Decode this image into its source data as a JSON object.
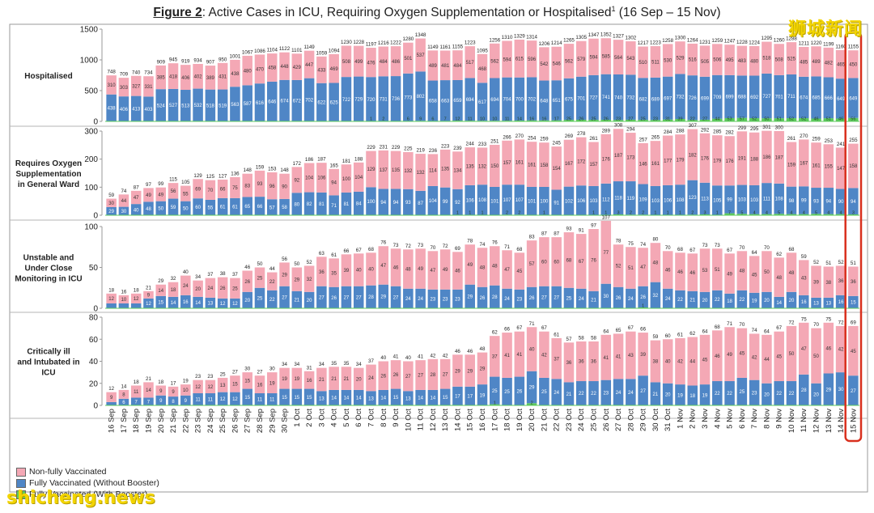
{
  "figure": {
    "label": "Figure 2",
    "title_rest": ": Active Cases in ICU, Requiring Oxygen Supplementation or Hospitalised",
    "superscript": "1",
    "date_range": " (16 Sep – 15 Nov)"
  },
  "watermarks": {
    "top_right": "狮城新闻",
    "bottom_left": "shicheng.news"
  },
  "legend": [
    {
      "label": "Non-fully Vaccinated",
      "color": "#f4a8b5"
    },
    {
      "label": "Fully Vaccinated (Without Booster)",
      "color": "#4f86c6"
    },
    {
      "label": "Fully Vaccinated (With Booster)",
      "color": "#5cc95c"
    }
  ],
  "chart_data": {
    "type": "bar",
    "stacked": true,
    "categories": [
      "16 Sep",
      "17 Sep",
      "18 Sep",
      "19 Sep",
      "20 Sep",
      "21 Sep",
      "22 Sep",
      "23 Sep",
      "24 Sep",
      "25 Sep",
      "26 Sep",
      "27 Sep",
      "28 Sep",
      "29 Sep",
      "30 Sep",
      "1 Oct",
      "2 Oct",
      "3 Oct",
      "4 Oct",
      "5 Oct",
      "6 Oct",
      "7 Oct",
      "8 Oct",
      "9 Oct",
      "10 Oct",
      "11 Oct",
      "12 Oct",
      "13 Oct",
      "14 Oct",
      "15 Oct",
      "16 Oct",
      "17 Oct",
      "18 Oct",
      "19 Oct",
      "20 Oct",
      "21 Oct",
      "22 Oct",
      "23 Oct",
      "24 Oct",
      "25 Oct",
      "26 Oct",
      "27 Oct",
      "28 Oct",
      "29 Oct",
      "30 Oct",
      "31 Oct",
      "1 Nov",
      "2 Nov",
      "3 Nov",
      "4 Nov",
      "5 Nov",
      "6 Nov",
      "7 Nov",
      "8 Nov",
      "9 Nov",
      "10 Nov",
      "11 Nov",
      "12 Nov",
      "13 Nov",
      "14 Nov",
      "15 Nov"
    ],
    "highlight_category": "15 Nov",
    "colors": {
      "non_fully": "#f4a8b5",
      "fully_no_booster": "#4f86c6",
      "booster": "#5cc95c",
      "highlight": "#d9301e"
    },
    "panels": [
      {
        "label": "Hospitalised",
        "ylim": [
          0,
          1500
        ],
        "yticks": [
          0,
          500,
          1000,
          1500
        ],
        "totals": [
          748,
          709,
          740,
          734,
          909,
          945,
          919,
          934,
          907,
          950,
          1001,
          1067,
          1086,
          1104,
          1122,
          1101,
          1149,
          1059,
          1094,
          1230,
          1228,
          1197,
          1216,
          1222,
          1280,
          1348,
          1149,
          1161,
          1155,
          1223,
          1095,
          1256,
          1310,
          1329,
          1314,
          1206,
          1214,
          1265,
          1305,
          1347,
          1352,
          1327,
          1302,
          1217,
          1223,
          1258,
          1300,
          1264,
          1231,
          1259,
          1247,
          1228,
          1224,
          1295,
          1260,
          1288,
          1211,
          1220,
          1199,
          1160,
          1155
        ],
        "non_fully": [
          310,
          303,
          327,
          331,
          385,
          418,
          406,
          402,
          389,
          431,
          438,
          480,
          470,
          458,
          448,
          429,
          447,
          433,
          469,
          508,
          499,
          476,
          484,
          486,
          501,
          537,
          489,
          481,
          484,
          517,
          468,
          562,
          594,
          615,
          596,
          542,
          546,
          562,
          579,
          594,
          585,
          564,
          543,
          510,
          511,
          530,
          529,
          516,
          505,
          506,
          495,
          483,
          480,
          518,
          508,
          525,
          485,
          489,
          482,
          465,
          450
        ],
        "fully": [
          438,
          406,
          413,
          403,
          524,
          527,
          513,
          532,
          518,
          519,
          563,
          587,
          616,
          646,
          674,
          672,
          702,
          622,
          625,
          722,
          729,
          720,
          731,
          736,
          773,
          802,
          658,
          663,
          659,
          694,
          617,
          694,
          704,
          700,
          702,
          648,
          651,
          675,
          701,
          727,
          741,
          740,
          732,
          682,
          689,
          697,
          732,
          726,
          699,
          709,
          699,
          688,
          692,
          727,
          701,
          711,
          674,
          685,
          666,
          649,
          649
        ],
        "booster": [
          0,
          0,
          0,
          0,
          0,
          0,
          0,
          0,
          0,
          0,
          0,
          0,
          0,
          0,
          0,
          0,
          0,
          0,
          0,
          0,
          0,
          1,
          2,
          0,
          6,
          9,
          6,
          7,
          12,
          11,
          10,
          10,
          11,
          14,
          16,
          16,
          17,
          25,
          26,
          25,
          26,
          23,
          27,
          25,
          23,
          31,
          39,
          22,
          27,
          44,
          53,
          57,
          52,
          50,
          51,
          52,
          52,
          46,
          51,
          46,
          56
        ]
      },
      {
        "label": "Requires Oxygen Supplementation in General Ward",
        "ylim": [
          0,
          300
        ],
        "yticks": [
          0,
          100,
          200,
          300
        ],
        "totals": [
          59,
          74,
          87,
          97,
          99,
          115,
          105,
          129,
          125,
          127,
          136,
          148,
          159,
          153,
          148,
          172,
          186,
          187,
          165,
          181,
          188,
          229,
          231,
          229,
          225,
          219,
          236,
          223,
          239,
          244,
          233,
          251,
          266,
          270,
          254,
          259,
          245,
          269,
          278,
          261,
          289,
          308,
          294,
          257,
          265,
          284,
          288,
          307,
          292,
          285,
          282,
          299,
          295,
          301,
          300,
          261,
          270,
          259,
          253,
          241,
          255
        ],
        "non_fully": [
          30,
          44,
          47,
          49,
          49,
          56,
          55,
          69,
          70,
          66,
          75,
          83,
          93,
          96,
          90,
          92,
          104,
          106,
          94,
          100,
          104,
          129,
          137,
          135,
          132,
          132,
          114,
          135,
          134,
          135,
          132,
          150,
          157,
          161,
          161,
          158,
          154,
          167,
          172,
          157,
          176,
          187,
          173,
          146,
          161,
          177,
          179,
          182,
          176,
          179,
          176,
          191,
          188,
          186,
          187,
          159,
          167,
          161,
          155,
          147,
          158
        ],
        "fully": [
          29,
          30,
          40,
          48,
          50,
          59,
          50,
          60,
          55,
          61,
          61,
          65,
          66,
          57,
          58,
          80,
          82,
          81,
          71,
          81,
          84,
          100,
          94,
          94,
          93,
          87,
          104,
          99,
          92,
          106,
          108,
          101,
          107,
          107,
          101,
          100,
          91,
          102,
          106,
          103,
          112,
          118,
          119,
          109,
          103,
          106,
          108,
          123,
          113,
          105,
          99,
          103,
          103,
          111,
          108,
          98,
          99,
          93,
          94,
          90,
          94
        ],
        "booster": [
          0,
          0,
          0,
          0,
          0,
          0,
          0,
          0,
          0,
          0,
          0,
          0,
          0,
          0,
          0,
          0,
          0,
          0,
          0,
          0,
          0,
          0,
          0,
          0,
          0,
          0,
          0,
          0,
          1,
          1,
          1,
          0,
          2,
          2,
          0,
          1,
          0,
          0,
          0,
          1,
          1,
          3,
          2,
          2,
          1,
          1,
          1,
          2,
          3,
          1,
          7,
          5,
          4,
          4,
          5,
          4,
          4,
          5,
          4,
          4,
          3
        ]
      },
      {
        "label": "Unstable and Under Close Monitoring in ICU",
        "ylim": [
          0,
          100
        ],
        "yticks": [
          0,
          50,
          100
        ],
        "totals": [
          18,
          16,
          18,
          21,
          29,
          32,
          40,
          34,
          37,
          38,
          37,
          46,
          50,
          44,
          56,
          50,
          52,
          63,
          61,
          66,
          67,
          68,
          76,
          73,
          72,
          73,
          70,
          72,
          69,
          78,
          74,
          76,
          71,
          68,
          83,
          87,
          87,
          93,
          91,
          97,
          107,
          78,
          75,
          74,
          80,
          70,
          68,
          67,
          73,
          73,
          67,
          70,
          64,
          70,
          62,
          68,
          59,
          52,
          51,
          52,
          51
        ],
        "non_fully": [
          12,
          10,
          12,
          9,
          14,
          18,
          24,
          20,
          24,
          26,
          25,
          26,
          25,
          22,
          29,
          29,
          32,
          36,
          35,
          39,
          40,
          40,
          47,
          46,
          48,
          49,
          47,
          49,
          46,
          49,
          48,
          48,
          47,
          45,
          57,
          60,
          60,
          68,
          67,
          76,
          77,
          52,
          51,
          47,
          48,
          46,
          46,
          46,
          53,
          51,
          49,
          48,
          45,
          50,
          48,
          48,
          43,
          39,
          38,
          36,
          36
        ],
        "fully": [
          6,
          6,
          6,
          12,
          15,
          14,
          16,
          14,
          13,
          12,
          12,
          20,
          25,
          22,
          27,
          21,
          20,
          27,
          26,
          27,
          27,
          28,
          29,
          27,
          24,
          24,
          23,
          23,
          23,
          29,
          26,
          28,
          24,
          23,
          26,
          27,
          27,
          25,
          24,
          21,
          30,
          26,
          24,
          26,
          32,
          24,
          22,
          21,
          20,
          22,
          18,
          22,
          19,
          20,
          14,
          20,
          16,
          13,
          13,
          16,
          15
        ],
        "booster": [
          0,
          0,
          0,
          0,
          0,
          0,
          0,
          0,
          0,
          0,
          0,
          0,
          0,
          0,
          0,
          0,
          0,
          0,
          0,
          0,
          0,
          0,
          0,
          0,
          0,
          0,
          0,
          0,
          0,
          0,
          0,
          0,
          0,
          0,
          0,
          0,
          0,
          0,
          0,
          0,
          0,
          0,
          0,
          1,
          0,
          0,
          0,
          0,
          0,
          0,
          0,
          0,
          0,
          0,
          0,
          0,
          0,
          0,
          0,
          0,
          0
        ]
      },
      {
        "label": "Critically ill and Intubated in ICU",
        "ylim": [
          0,
          80
        ],
        "yticks": [
          0,
          20,
          40,
          60,
          80
        ],
        "totals": [
          12,
          14,
          18,
          21,
          18,
          17,
          19,
          23,
          23,
          25,
          27,
          30,
          27,
          30,
          34,
          34,
          31,
          34,
          35,
          35,
          34,
          37,
          40,
          41,
          40,
          41,
          42,
          42,
          46,
          46,
          48,
          62,
          66,
          67,
          71,
          67,
          61,
          57,
          58,
          58,
          64,
          65,
          67,
          66,
          59,
          60,
          61,
          62,
          64,
          68,
          71,
          70,
          74,
          64,
          67,
          72,
          75,
          70,
          75,
          72,
          69
        ],
        "non_fully": [
          9,
          8,
          11,
          14,
          9,
          9,
          10,
          12,
          12,
          13,
          15,
          15,
          16,
          19,
          19,
          19,
          16,
          21,
          21,
          21,
          20,
          24,
          26,
          26,
          27,
          27,
          28,
          27,
          29,
          29,
          29,
          37,
          41,
          41,
          40,
          42,
          37,
          36,
          36,
          36,
          41,
          41,
          43,
          39,
          38,
          40,
          42,
          44,
          45,
          46,
          49,
          45,
          42,
          44,
          45,
          50,
          47,
          50,
          46,
          42,
          45
        ],
        "fully": [
          3,
          6,
          7,
          7,
          9,
          8,
          9,
          11,
          11,
          12,
          12,
          15,
          11,
          11,
          15,
          15,
          15,
          13,
          14,
          14,
          14,
          13,
          14,
          15,
          13,
          14,
          14,
          15,
          17,
          17,
          19,
          25,
          25,
          26,
          29,
          25,
          24,
          21,
          22,
          22,
          23,
          24,
          24,
          27,
          21,
          20,
          19,
          18,
          19,
          22,
          22,
          25,
          23,
          20,
          22,
          22,
          28,
          20,
          29,
          30,
          27
        ],
        "booster": [
          0,
          0,
          0,
          0,
          0,
          0,
          0,
          0,
          0,
          0,
          0,
          0,
          0,
          0,
          0,
          0,
          0,
          0,
          0,
          0,
          0,
          0,
          0,
          0,
          0,
          0,
          0,
          0,
          0,
          0,
          0,
          1,
          0,
          0,
          2,
          0,
          0,
          0,
          0,
          0,
          0,
          0,
          0,
          0,
          0,
          0,
          0,
          0,
          0,
          0,
          0,
          0,
          0,
          0,
          0,
          0,
          0,
          0,
          0,
          0,
          0
        ]
      }
    ]
  }
}
